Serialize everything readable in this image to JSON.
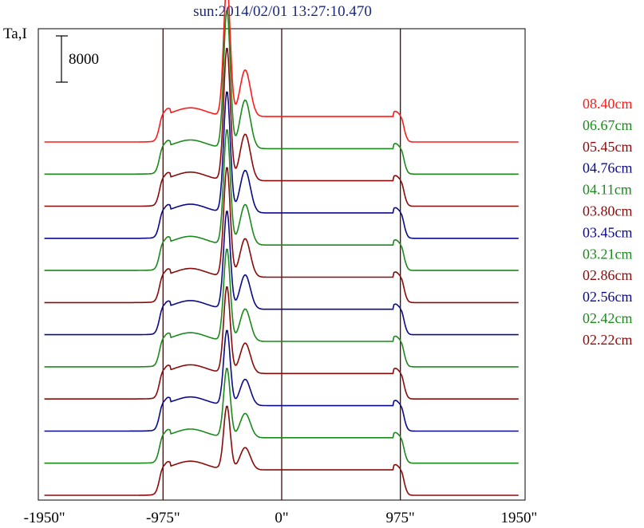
{
  "chart_data": {
    "type": "line",
    "title": "sun:2014/02/01 13:27:10.470",
    "ylabel": "Ta,I",
    "scale_bar_label": "8000",
    "xlim": [
      -2000,
      2000
    ],
    "xticks": [
      {
        "value": -1950,
        "label": "-1950\""
      },
      {
        "value": -975,
        "label": "-975\""
      },
      {
        "value": 0,
        "label": "0\""
      },
      {
        "value": 975,
        "label": "975\""
      },
      {
        "value": 1950,
        "label": "1950\""
      }
    ],
    "vlines": [
      -975,
      0,
      975
    ],
    "series": [
      {
        "name": "08.40cm",
        "color": "#ff1a1a",
        "peak": 23000,
        "disk": 4400
      },
      {
        "name": "06.67cm",
        "color": "#1a8a1a",
        "peak": 24000,
        "disk": 4400
      },
      {
        "name": "05.45cm",
        "color": "#8b0a0a",
        "peak": 23000,
        "disk": 4400
      },
      {
        "name": "04.76cm",
        "color": "#0a0a8b",
        "peak": 21000,
        "disk": 4400
      },
      {
        "name": "04.11cm",
        "color": "#1a8a1a",
        "peak": 20000,
        "disk": 4400
      },
      {
        "name": "03.80cm",
        "color": "#8b0a0a",
        "peak": 19000,
        "disk": 4400
      },
      {
        "name": "03.45cm",
        "color": "#0a0a8b",
        "peak": 17000,
        "disk": 4400
      },
      {
        "name": "03.21cm",
        "color": "#1a8a1a",
        "peak": 16000,
        "disk": 4400
      },
      {
        "name": "02.86cm",
        "color": "#8b0a0a",
        "peak": 15000,
        "disk": 4400
      },
      {
        "name": "02.56cm",
        "color": "#0a0a8b",
        "peak": 13000,
        "disk": 4400
      },
      {
        "name": "02.42cm",
        "color": "#1a8a1a",
        "peak": 12000,
        "disk": 4400
      },
      {
        "name": "02.22cm",
        "color": "#8b0a0a",
        "peak": 11000,
        "disk": 4400
      }
    ]
  }
}
